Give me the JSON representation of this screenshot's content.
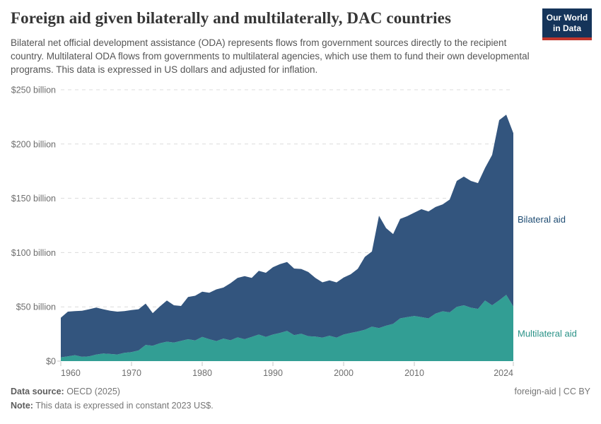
{
  "header": {
    "title": "Foreign aid given bilaterally and multilaterally, DAC countries",
    "subtitle": "Bilateral net official development assistance (ODA) represents flows from government sources directly to the recipient country. Multilateral ODA flows from governments to multilateral agencies, which use them to fund their own developmental programs. This data is expressed in US dollars and adjusted for inflation.",
    "logo": {
      "line1": "Our World",
      "line2": "in Data",
      "bg_color": "#15345a",
      "accent_color": "#c0362c"
    }
  },
  "chart_data": {
    "type": "area",
    "stacked": true,
    "title": "Foreign aid given bilaterally and multilaterally, DAC countries",
    "unit": "US dollars, constant 2023 prices",
    "x": [
      1960,
      1961,
      1962,
      1963,
      1964,
      1965,
      1966,
      1967,
      1968,
      1969,
      1970,
      1971,
      1972,
      1973,
      1974,
      1975,
      1976,
      1977,
      1978,
      1979,
      1980,
      1981,
      1982,
      1983,
      1984,
      1985,
      1986,
      1987,
      1988,
      1989,
      1990,
      1991,
      1992,
      1993,
      1994,
      1995,
      1996,
      1997,
      1998,
      1999,
      2000,
      2001,
      2002,
      2003,
      2004,
      2005,
      2006,
      2007,
      2008,
      2009,
      2010,
      2011,
      2012,
      2013,
      2014,
      2015,
      2016,
      2017,
      2018,
      2019,
      2020,
      2021,
      2022,
      2023,
      2024
    ],
    "series": [
      {
        "name": "Multilateral aid",
        "color": "#329e94",
        "label_color": "#2a9287",
        "values": [
          3.5,
          4.4,
          5.5,
          4.0,
          4.4,
          6.0,
          7.0,
          6.6,
          6.1,
          7.7,
          8.3,
          9.8,
          14.9,
          14.2,
          16.4,
          17.9,
          17.1,
          18.6,
          20.2,
          19.0,
          22.3,
          20.2,
          18.5,
          20.8,
          19.2,
          21.9,
          20.2,
          22.3,
          24.5,
          22.3,
          24.5,
          26.0,
          27.8,
          23.9,
          25.2,
          23.0,
          22.6,
          21.7,
          23.4,
          21.7,
          24.5,
          26.0,
          27.3,
          28.9,
          31.7,
          30.4,
          32.6,
          34.3,
          39.4,
          40.5,
          41.6,
          40.5,
          39.4,
          43.8,
          45.9,
          44.9,
          50.0,
          51.4,
          49.2,
          48.1,
          55.8,
          51.4,
          56.0,
          61.0,
          50.3
        ]
      },
      {
        "name": "Bilateral aid",
        "color": "#33557e",
        "label_color": "#1e4c73",
        "values": [
          36.5,
          41.2,
          40.5,
          42.4,
          43.4,
          43.3,
          40.8,
          39.8,
          39.5,
          38.3,
          38.8,
          38.0,
          38.1,
          30.0,
          33.9,
          37.9,
          34.3,
          32.2,
          38.9,
          41.2,
          41.7,
          42.8,
          47.6,
          47.0,
          52.6,
          54.7,
          58.1,
          54.3,
          58.7,
          59.1,
          62.0,
          63.3,
          63.5,
          61.4,
          59.7,
          59.1,
          54.0,
          50.9,
          51.0,
          50.8,
          52.5,
          54.0,
          57.7,
          67.1,
          69.3,
          103.6,
          89.9,
          82.7,
          91.6,
          93.0,
          95.2,
          99.5,
          98.4,
          98.2,
          98.5,
          103.9,
          116.0,
          118.6,
          116.8,
          115.9,
          122.2,
          138.6,
          166.0,
          166.0,
          159.7
        ]
      }
    ],
    "ylim": [
      0,
      250
    ],
    "y_ticks": [
      {
        "value": 0,
        "label": "$0"
      },
      {
        "value": 50,
        "label": "$50 billion"
      },
      {
        "value": 100,
        "label": "$100 billion"
      },
      {
        "value": 150,
        "label": "$150 billion"
      },
      {
        "value": 200,
        "label": "$200 billion"
      },
      {
        "value": 250,
        "label": "$250 billion"
      }
    ],
    "x_ticks": [
      1960,
      1970,
      1980,
      1990,
      2000,
      2010,
      2024
    ],
    "grid": "horizontal-dashed",
    "legend_position": "right-of-plot"
  },
  "footer": {
    "source_label": "Data source:",
    "source_value": " OECD (2025)",
    "note_label": "Note:",
    "note_value": " This data is expressed in constant 2023 US$.",
    "rights": "foreign-aid | CC BY"
  }
}
